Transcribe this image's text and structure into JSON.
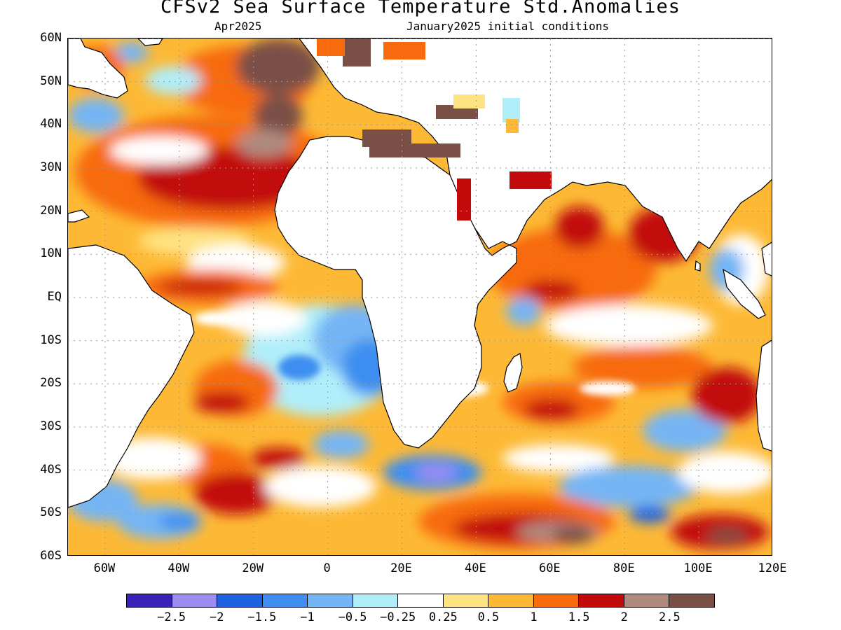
{
  "header": {
    "title": "CFSv2 Sea Surface Temperature Std.Anomalies",
    "valid_month": "Apr2025",
    "initial_conditions": "January2025 initial conditions"
  },
  "map": {
    "lon_range": [
      -70,
      120
    ],
    "lat_range": [
      -60,
      60
    ],
    "lat_labels": [
      "60N",
      "50N",
      "40N",
      "30N",
      "20N",
      "10N",
      "EQ",
      "10S",
      "20S",
      "30S",
      "40S",
      "50S",
      "60S"
    ],
    "lon_labels": [
      "60W",
      "40W",
      "20W",
      "0",
      "20E",
      "40E",
      "60E",
      "80E",
      "100E",
      "120E"
    ],
    "lat_values": [
      60,
      50,
      40,
      30,
      20,
      10,
      0,
      -10,
      -20,
      -30,
      -40,
      -50,
      -60
    ],
    "lon_values": [
      -60,
      -40,
      -20,
      0,
      20,
      40,
      60,
      80,
      100,
      120
    ],
    "land_color": "#ffffff",
    "coastline_color": "#000000"
  },
  "legend": {
    "colors": [
      "#3a22b8",
      "#9c8cf2",
      "#1f62e0",
      "#3d8ef0",
      "#74b5f5",
      "#b0eefa",
      "#ffffff",
      "#fee382",
      "#fdb935",
      "#f76a0e",
      "#c20a0a",
      "#b08a7e",
      "#7a5046"
    ],
    "labels": [
      "-2.5",
      "-2",
      "-1.5",
      "-1",
      "-0.5",
      "-0.25",
      "0.25",
      "0.5",
      "1",
      "1.5",
      "2",
      "2.5"
    ]
  }
}
